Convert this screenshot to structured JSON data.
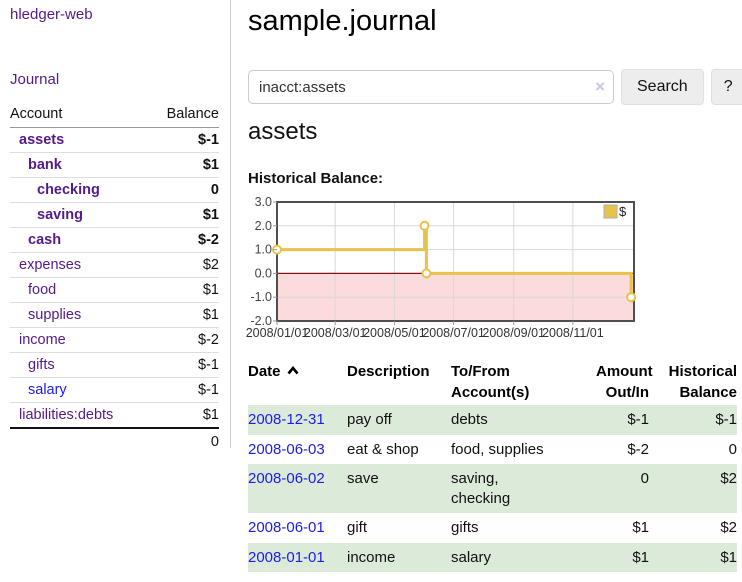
{
  "app": {
    "brand": "hledger-web",
    "nav_journal": "Journal"
  },
  "header": {
    "title": "sample.journal"
  },
  "search": {
    "query": "inacct:assets",
    "button_label": "Search",
    "help_label": "?",
    "clear_icon": "×"
  },
  "sidebar": {
    "accounts_header": {
      "account": "Account",
      "balance": "Balance"
    },
    "accounts": [
      {
        "name": "assets",
        "level": 1,
        "bold": true,
        "balance": "$-1",
        "balance_style": "neg-strong"
      },
      {
        "name": "bank",
        "level": 2,
        "bold": true,
        "balance": "$1",
        "balance_style": "pos-strong"
      },
      {
        "name": "checking",
        "level": 3,
        "bold": true,
        "balance": "0",
        "balance_style": "pos-strong"
      },
      {
        "name": "saving",
        "level": 3,
        "bold": true,
        "balance": "$1",
        "balance_style": "pos-strong"
      },
      {
        "name": "cash",
        "level": 2,
        "bold": true,
        "balance": "$-2",
        "balance_style": "neg-strong"
      },
      {
        "name": "expenses",
        "level": 1,
        "bold": false,
        "balance": "$2",
        "balance_style": "pos"
      },
      {
        "name": "food",
        "level": 2,
        "bold": false,
        "balance": "$1",
        "balance_style": "pos"
      },
      {
        "name": "supplies",
        "level": 2,
        "bold": false,
        "balance": "$1",
        "balance_style": "pos"
      },
      {
        "name": "income",
        "level": 1,
        "bold": false,
        "balance": "$-2",
        "balance_style": "neg-muted"
      },
      {
        "name": "gifts",
        "level": 2,
        "bold": false,
        "balance": "$-1",
        "balance_style": "neg-muted"
      },
      {
        "name": "salary",
        "level": 2,
        "bold": false,
        "balance": "$-1",
        "balance_style": "neg-muted",
        "link": "unvisited"
      },
      {
        "name": "liabilities:debts",
        "level": 1,
        "bold": false,
        "balance": "$1",
        "balance_style": "pos"
      }
    ],
    "total": "0"
  },
  "account_page": {
    "title": "assets",
    "chart_label": "Historical Balance:"
  },
  "chart_data": {
    "type": "line",
    "style": "step",
    "series": [
      {
        "name": "$",
        "points": [
          [
            "2008-01-01",
            1
          ],
          [
            "2008-06-01",
            2
          ],
          [
            "2008-06-03",
            0
          ],
          [
            "2008-12-31",
            -1
          ]
        ]
      }
    ],
    "x_range": [
      "2008-01-01",
      "2009-01-03"
    ],
    "ylim": [
      -2,
      3
    ],
    "y_ticks": [
      "3.0",
      "2.0",
      "1.0",
      "0.0",
      "-1.0",
      "-2.0"
    ],
    "x_ticks": [
      {
        "date": "2008-01-01",
        "label": "2008/01/01"
      },
      {
        "date": "2008-03-01",
        "label": "2008/03/01"
      },
      {
        "date": "2008-05-01",
        "label": "2008/05/01"
      },
      {
        "date": "2008-07-01",
        "label": "2008/07/01"
      },
      {
        "date": "2008-09-01",
        "label": "2008/09/01"
      },
      {
        "date": "2008-11-01",
        "label": "2008/11/01"
      }
    ],
    "legend": {
      "label": "$",
      "position": "top-right"
    },
    "grid": true,
    "line_color": "#e8c24a",
    "negative_region_fill": "#fbdbdb",
    "zero_line_color": "#8c0e0e"
  },
  "register": {
    "columns": [
      {
        "label": "Date",
        "sortable": true,
        "sort": "asc"
      },
      {
        "label": "Description"
      },
      {
        "label": "To/From\nAccount(s)"
      },
      {
        "label": "Amount\nOut/In",
        "align": "right"
      },
      {
        "label": "Historical\nBalance",
        "align": "right"
      }
    ],
    "rows": [
      {
        "date": "2008-12-31",
        "description": "pay off",
        "accounts": "debts",
        "amount": "$-1",
        "amount_negative": true,
        "balance": "$-1",
        "balance_negative": true
      },
      {
        "date": "2008-06-03",
        "description": "eat & shop",
        "accounts": "food, supplies",
        "amount": "$-2",
        "amount_negative": true,
        "balance": "0",
        "balance_negative": false
      },
      {
        "date": "2008-06-02",
        "description": "save",
        "accounts": "saving,\nchecking",
        "amount": "0",
        "amount_negative": false,
        "balance": "$2",
        "balance_negative": false
      },
      {
        "date": "2008-06-01",
        "description": "gift",
        "accounts": "gifts",
        "amount": "$1",
        "amount_negative": false,
        "balance": "$2",
        "balance_negative": false
      },
      {
        "date": "2008-01-01",
        "description": "income",
        "accounts": "salary",
        "amount": "$1",
        "amount_negative": false,
        "balance": "$1",
        "balance_negative": false
      }
    ]
  },
  "colors": {
    "link_purple": "#551a8b",
    "link_blue": "#1c1ce8",
    "negative_strong": "#a11616",
    "negative_muted": "#bc7474",
    "row_green": "#dceada",
    "chart_line_gold": "#e8c24a",
    "chart_negative_fill": "#fbdbdb",
    "chart_zero_line": "#8c0e0e",
    "button_bg": "#ededed"
  }
}
